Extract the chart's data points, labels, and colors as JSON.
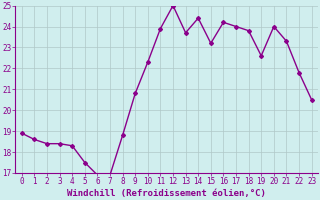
{
  "x": [
    0,
    1,
    2,
    3,
    4,
    5,
    6,
    7,
    8,
    9,
    10,
    11,
    12,
    13,
    14,
    15,
    16,
    17,
    18,
    19,
    20,
    21,
    22,
    23
  ],
  "y": [
    18.9,
    18.6,
    18.4,
    18.4,
    18.3,
    17.5,
    16.9,
    16.9,
    18.8,
    20.8,
    22.3,
    23.9,
    25.0,
    23.7,
    24.4,
    23.2,
    24.2,
    24.0,
    23.8,
    22.6,
    24.0,
    23.3,
    21.8,
    20.5
  ],
  "line_color": "#8b008b",
  "marker": "D",
  "marker_size": 2,
  "bg_color": "#d0eeee",
  "grid_color": "#b0c8c8",
  "xlabel": "Windchill (Refroidissement éolien,°C)",
  "xlabel_fontsize": 6.5,
  "tick_fontsize": 5.5,
  "ylim": [
    17,
    25
  ],
  "yticks": [
    17,
    18,
    19,
    20,
    21,
    22,
    23,
    24,
    25
  ],
  "xticks": [
    0,
    1,
    2,
    3,
    4,
    5,
    6,
    7,
    8,
    9,
    10,
    11,
    12,
    13,
    14,
    15,
    16,
    17,
    18,
    19,
    20,
    21,
    22,
    23
  ],
  "linewidth": 1.0
}
